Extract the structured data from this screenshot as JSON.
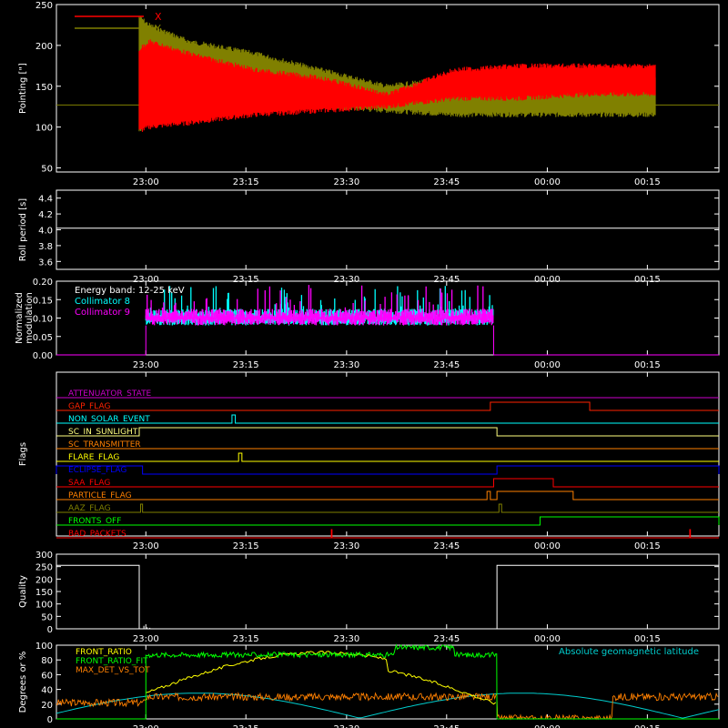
{
  "figure": {
    "background": "#000000",
    "foreground": "#ffffff",
    "time_ticks": [
      "23:00",
      "23:15",
      "23:30",
      "23:45",
      "00:00",
      "00:15"
    ]
  },
  "chart_data": [
    {
      "id": "pointing",
      "type": "line",
      "ylabel": "Pointing [\"]",
      "ylim": [
        45,
        250
      ],
      "yticks": [
        50,
        100,
        150,
        200,
        250
      ],
      "legend": "top-left",
      "series": [
        {
          "name": "X",
          "color": "#ff0000",
          "baseline": 127,
          "envelope": [
            [
              0,
              0,
              0
            ],
            [
              12,
              0,
              0
            ],
            [
              12.5,
              95,
              195
            ],
            [
              14,
              100,
              205
            ],
            [
              20,
              105,
              190
            ],
            [
              30,
              115,
              170
            ],
            [
              40,
              120,
              160
            ],
            [
              50,
              125,
              140
            ],
            [
              60,
              135,
              170
            ],
            [
              70,
              135,
              175
            ],
            [
              80,
              140,
              175
            ],
            [
              90,
              140,
              175
            ]
          ]
        },
        {
          "name": "Y",
          "color": "#808000",
          "baseline": 127,
          "envelope": [
            [
              0,
              0,
              0
            ],
            [
              12,
              0,
              0
            ],
            [
              12.5,
              95,
              235
            ],
            [
              14,
              110,
              225
            ],
            [
              20,
              125,
              205
            ],
            [
              30,
              125,
              190
            ],
            [
              40,
              125,
              170
            ],
            [
              50,
              120,
              150
            ],
            [
              60,
              115,
              160
            ],
            [
              70,
              115,
              160
            ],
            [
              80,
              115,
              160
            ],
            [
              90,
              115,
              160
            ]
          ]
        }
      ],
      "active_range": [
        12.5,
        90.5
      ]
    },
    {
      "id": "roll",
      "type": "line",
      "ylabel": "Roll period [s]",
      "ylim": [
        3.5,
        4.5
      ],
      "yticks": [
        3.6,
        3.8,
        4.0,
        4.2,
        4.4
      ],
      "series": [
        {
          "name": "",
          "color": "#ffffff",
          "value": 4.02
        }
      ]
    },
    {
      "id": "modulation",
      "type": "line",
      "ylabel": "Normalized modulation",
      "ylim": [
        0,
        0.2
      ],
      "yticks": [
        0.0,
        0.05,
        0.1,
        0.15,
        0.2
      ],
      "legend_title": "Energy band: 12-25 keV",
      "series": [
        {
          "name": "Collimator 8",
          "color": "#00ffff",
          "mean": 0.1
        },
        {
          "name": "Collimator 9",
          "color": "#ff00ff",
          "mean": 0.1
        }
      ],
      "active_range": [
        -0.3,
        66
      ]
    },
    {
      "id": "flags",
      "type": "line",
      "ylabel": "Flags",
      "series": [
        {
          "name": "ATTENUATOR_STATE",
          "color": "#cc00cc",
          "segments": []
        },
        {
          "name": "GAP_FLAG",
          "color": "#ff2200",
          "segments": [
            [
              65.5,
              80.5
            ]
          ]
        },
        {
          "name": "NON_SOLAR_EVENT",
          "color": "#00ffff",
          "segments": [
            [
              26.5,
              27
            ]
          ]
        },
        {
          "name": "SC_IN_SUNLIGHT",
          "color": "#ffff80",
          "segments": [
            [
              12.5,
              66.5
            ]
          ]
        },
        {
          "name": "SC_TRANSMITTER",
          "color": "#ff8000",
          "segments": []
        },
        {
          "name": "FLARE_FLAG",
          "color": "#ffff00",
          "segments": [
            [
              27.5,
              28
            ]
          ]
        },
        {
          "name": "ECLIPSE_FLAG",
          "color": "#0000ff",
          "segments": [
            [
              0,
              13
            ],
            [
              66.5,
              100
            ]
          ]
        },
        {
          "name": "SAA_FLAG",
          "color": "#ff0000",
          "segments": [
            [
              66,
              75
            ]
          ]
        },
        {
          "name": "PARTICLE_FLAG",
          "color": "#ff8000",
          "segments": [
            [
              65,
              65.5
            ],
            [
              66.5,
              78
            ]
          ]
        },
        {
          "name": "AAZ_FLAG",
          "color": "#808000",
          "segments": [
            [
              12.7,
              13
            ],
            [
              66.8,
              67.2
            ]
          ]
        },
        {
          "name": "FRONTS_OFF",
          "color": "#00ff00",
          "segments": [
            [
              0,
              -0.3
            ],
            [
              73,
              100
            ]
          ]
        },
        {
          "name": "BAD_PACKETS",
          "color": "#ff0000",
          "segments": [
            [
              41.5,
              41.6
            ],
            [
              95.6,
              95.7
            ]
          ]
        }
      ]
    },
    {
      "id": "quality",
      "type": "line",
      "ylabel": "Quality",
      "ylim": [
        0,
        300
      ],
      "yticks": [
        0,
        50,
        100,
        150,
        200,
        250,
        300
      ],
      "series": [
        {
          "name": "",
          "color": "#ffffff",
          "segments": [
            [
              -1,
              12.5,
              255
            ],
            [
              12.5,
              66.5,
              0
            ],
            [
              66.5,
              100,
              255
            ]
          ]
        }
      ]
    },
    {
      "id": "degrees",
      "type": "line",
      "ylabel": "Degrees or %",
      "ylim": [
        0,
        100
      ],
      "yticks": [
        0,
        20,
        40,
        60,
        80,
        100
      ],
      "series": [
        {
          "name": "FRONT_RATIO",
          "color": "#ffff00"
        },
        {
          "name": "FRONT_RATIO_FIT",
          "color": "#00ff00"
        },
        {
          "name": "MAX_DET_VS_TOT",
          "color": "#ff8000"
        },
        {
          "name": "Absolute geomagnetic latitude",
          "color": "#00cccc"
        }
      ]
    }
  ]
}
